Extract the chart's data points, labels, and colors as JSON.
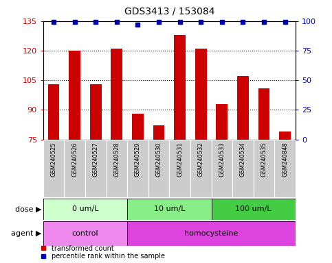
{
  "title": "GDS3413 / 153084",
  "samples": [
    "GSM240525",
    "GSM240526",
    "GSM240527",
    "GSM240528",
    "GSM240529",
    "GSM240530",
    "GSM240531",
    "GSM240532",
    "GSM240533",
    "GSM240534",
    "GSM240535",
    "GSM240848"
  ],
  "transformed_count": [
    103,
    120,
    103,
    121,
    88,
    82,
    128,
    121,
    93,
    107,
    101,
    79
  ],
  "percentile_rank": [
    99,
    99,
    99,
    99,
    97,
    99,
    99,
    99,
    99,
    99,
    99,
    99
  ],
  "ylim_left": [
    75,
    135
  ],
  "ylim_right": [
    0,
    100
  ],
  "yticks_left": [
    75,
    90,
    105,
    120,
    135
  ],
  "yticks_right": [
    0,
    25,
    50,
    75,
    100
  ],
  "bar_color": "#cc0000",
  "dot_color": "#0000bb",
  "dose_groups": [
    {
      "label": "0 um/L",
      "start": 0,
      "end": 4,
      "color": "#ccffcc"
    },
    {
      "label": "10 um/L",
      "start": 4,
      "end": 8,
      "color": "#88ee88"
    },
    {
      "label": "100 um/L",
      "start": 8,
      "end": 12,
      "color": "#44cc44"
    }
  ],
  "agent_groups": [
    {
      "label": "control",
      "start": 0,
      "end": 4,
      "color": "#ee88ee"
    },
    {
      "label": "homocysteine",
      "start": 4,
      "end": 12,
      "color": "#dd44dd"
    }
  ],
  "dose_label": "dose",
  "agent_label": "agent",
  "legend_bar_label": "transformed count",
  "legend_dot_label": "percentile rank within the sample",
  "sample_bg_color": "#cccccc",
  "grid_color": "#000000",
  "tick_color_left": "#cc0000",
  "tick_color_right": "#0000bb"
}
